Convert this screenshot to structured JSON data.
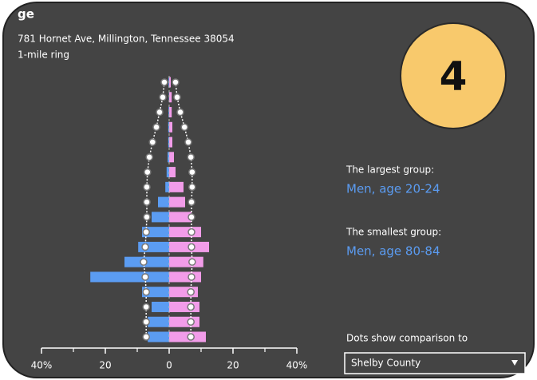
{
  "chart_data": {
    "type": "population-pyramid",
    "title": "ge",
    "subtitle": "781 Hornet Ave, Millington, Tennessee 38054",
    "ring": "1-mile ring",
    "badge": "4",
    "largest_label": "The largest group:",
    "largest_value": "Men, age 20-24",
    "smallest_label": "The smallest group:",
    "smallest_value": "Men, age 80-84",
    "comparison_label": "Dots show comparison to",
    "comparison_choice": "Shelby County",
    "categories": [
      null,
      null,
      null,
      null,
      null,
      null,
      null,
      null,
      null,
      null,
      null,
      null,
      null,
      null,
      null,
      null,
      null,
      null
    ],
    "series": [
      {
        "color": "#5b9cf2",
        "side": "left",
        "values": [
          6.7,
          6.7,
          5.5,
          8.5,
          24.7,
          14,
          9.7,
          8.5,
          5.5,
          3.5,
          1.2,
          0.8,
          0.5,
          0.3,
          0.3,
          0.2,
          0.1,
          0.2
        ]
      },
      {
        "color": "#f29ce9",
        "side": "right",
        "values": [
          11.5,
          9.5,
          9.5,
          9,
          10,
          10.7,
          12.5,
          10,
          7,
          5,
          4.5,
          2,
          1.5,
          1,
          1,
          0.8,
          0.8,
          0.5
        ]
      },
      {
        "color": "#ffffff",
        "side": "left",
        "dots": true,
        "values": [
          7.2,
          7.2,
          7.2,
          7.2,
          7.5,
          8,
          7.5,
          7.2,
          7,
          7,
          7,
          6.8,
          6.2,
          5.2,
          4,
          3,
          2,
          1.5
        ]
      },
      {
        "color": "#ffffff",
        "side": "right",
        "dots": true,
        "values": [
          6.8,
          6.8,
          6.8,
          6.8,
          7,
          7.2,
          7,
          7,
          7,
          7,
          7.2,
          7.2,
          6.8,
          6,
          4.8,
          3.5,
          2.5,
          2
        ]
      }
    ],
    "xlim": [
      -42,
      42
    ],
    "xticks": [
      {
        "value": -40,
        "label": "40%"
      },
      {
        "value": -20,
        "label": "20"
      },
      0,
      {
        "value": 20,
        "label": "20"
      },
      {
        "value": 40,
        "label": "40%"
      }
    ]
  }
}
